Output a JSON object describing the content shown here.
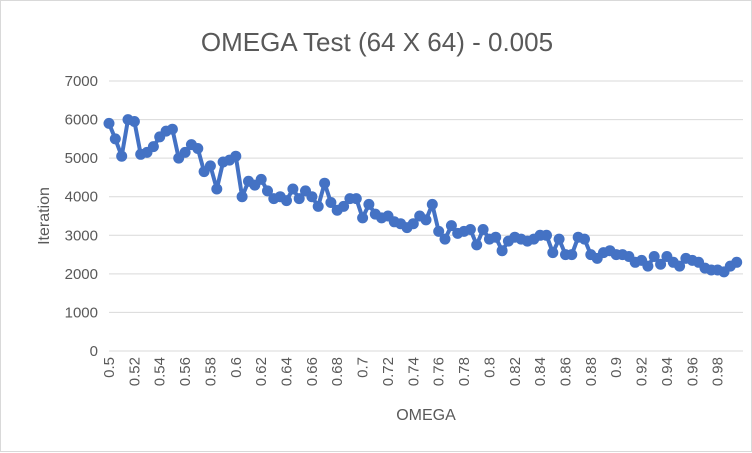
{
  "chart_data": {
    "type": "line",
    "title": "OMEGA Test (64 X 64) - 0.005",
    "xlabel": "OMEGA",
    "ylabel": "Iteration",
    "xlim": [
      0.5,
      1.0
    ],
    "ylim": [
      0,
      7000
    ],
    "y_ticks": [
      0,
      1000,
      2000,
      3000,
      4000,
      5000,
      6000,
      7000
    ],
    "x_tick_labels": [
      "0.5",
      "0.52",
      "0.54",
      "0.56",
      "0.58",
      "0.6",
      "0.62",
      "0.64",
      "0.66",
      "0.68",
      "0.7",
      "0.72",
      "0.74",
      "0.76",
      "0.78",
      "0.8",
      "0.82",
      "0.84",
      "0.86",
      "0.88",
      "0.9",
      "0.92",
      "0.94",
      "0.96",
      "0.98"
    ],
    "grid": true,
    "legend": "none",
    "series_color": "#4472c4",
    "grid_color": "#d9d9d9",
    "series": [
      {
        "x": [
          0.5,
          0.505,
          0.51,
          0.515,
          0.52,
          0.525,
          0.53,
          0.535,
          0.54,
          0.545,
          0.55,
          0.555,
          0.56,
          0.565,
          0.57,
          0.575,
          0.58,
          0.585,
          0.59,
          0.595,
          0.6,
          0.605,
          0.61,
          0.615,
          0.62,
          0.625,
          0.63,
          0.635,
          0.64,
          0.645,
          0.65,
          0.655,
          0.66,
          0.665,
          0.67,
          0.675,
          0.68,
          0.685,
          0.69,
          0.695,
          0.7,
          0.705,
          0.71,
          0.715,
          0.72,
          0.725,
          0.73,
          0.735,
          0.74,
          0.745,
          0.75,
          0.755,
          0.76,
          0.765,
          0.77,
          0.775,
          0.78,
          0.785,
          0.79,
          0.795,
          0.8,
          0.805,
          0.81,
          0.815,
          0.82,
          0.825,
          0.83,
          0.835,
          0.84,
          0.845,
          0.85,
          0.855,
          0.86,
          0.865,
          0.87,
          0.875,
          0.88,
          0.885,
          0.89,
          0.895,
          0.9,
          0.905,
          0.91,
          0.915,
          0.92,
          0.925,
          0.93,
          0.935,
          0.94,
          0.945,
          0.95,
          0.955,
          0.96,
          0.965,
          0.97,
          0.975,
          0.98,
          0.985,
          0.99,
          0.995
        ],
        "values": [
          5900,
          5500,
          5050,
          6000,
          5950,
          5100,
          5150,
          5300,
          5550,
          5700,
          5750,
          5000,
          5150,
          5350,
          5250,
          4650,
          4800,
          4200,
          4900,
          4950,
          5050,
          4000,
          4400,
          4300,
          4450,
          4150,
          3950,
          4000,
          3900,
          4200,
          3950,
          4150,
          4000,
          3750,
          4350,
          3850,
          3650,
          3750,
          3950,
          3950,
          3450,
          3800,
          3550,
          3450,
          3500,
          3350,
          3300,
          3200,
          3300,
          3500,
          3400,
          3800,
          3100,
          2900,
          3250,
          3050,
          3100,
          3150,
          2750,
          3150,
          2900,
          2950,
          2600,
          2850,
          2950,
          2900,
          2850,
          2900,
          3000,
          3000,
          2550,
          2900,
          2500,
          2500,
          2950,
          2900,
          2500,
          2400,
          2550,
          2600,
          2500,
          2500,
          2450,
          2300,
          2350,
          2200,
          2450,
          2250,
          2450,
          2300,
          2200,
          2400,
          2350,
          2300,
          2150,
          2100,
          2100,
          2050,
          2200,
          2300
        ]
      }
    ]
  }
}
